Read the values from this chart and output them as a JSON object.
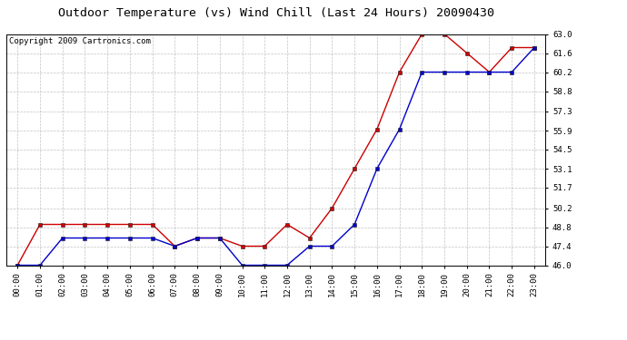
{
  "title": "Outdoor Temperature (vs) Wind Chill (Last 24 Hours) 20090430",
  "copyright": "Copyright 2009 Cartronics.com",
  "x_labels": [
    "00:00",
    "01:00",
    "02:00",
    "03:00",
    "04:00",
    "05:00",
    "06:00",
    "07:00",
    "08:00",
    "09:00",
    "10:00",
    "11:00",
    "12:00",
    "13:00",
    "14:00",
    "15:00",
    "16:00",
    "17:00",
    "18:00",
    "19:00",
    "20:00",
    "21:00",
    "22:00",
    "23:00"
  ],
  "temp_red": [
    46.0,
    49.0,
    49.0,
    49.0,
    49.0,
    49.0,
    49.0,
    47.4,
    48.0,
    48.0,
    47.4,
    47.4,
    49.0,
    48.0,
    50.2,
    53.1,
    56.0,
    60.2,
    63.0,
    63.0,
    61.6,
    60.2,
    62.0,
    62.0
  ],
  "temp_blue": [
    46.0,
    46.0,
    48.0,
    48.0,
    48.0,
    48.0,
    48.0,
    47.4,
    48.0,
    48.0,
    46.0,
    46.0,
    46.0,
    47.4,
    47.4,
    49.0,
    53.1,
    56.0,
    60.2,
    60.2,
    60.2,
    60.2,
    60.2,
    62.0
  ],
  "ylim_min": 46.0,
  "ylim_max": 63.0,
  "yticks": [
    46.0,
    47.4,
    48.8,
    50.2,
    51.7,
    53.1,
    54.5,
    55.9,
    57.3,
    58.8,
    60.2,
    61.6,
    63.0
  ],
  "red_color": "#cc0000",
  "blue_color": "#0000cc",
  "grid_color": "#bbbbbb",
  "bg_color": "#ffffff",
  "title_fontsize": 9.5,
  "copyright_fontsize": 6.5,
  "tick_fontsize": 6.5
}
